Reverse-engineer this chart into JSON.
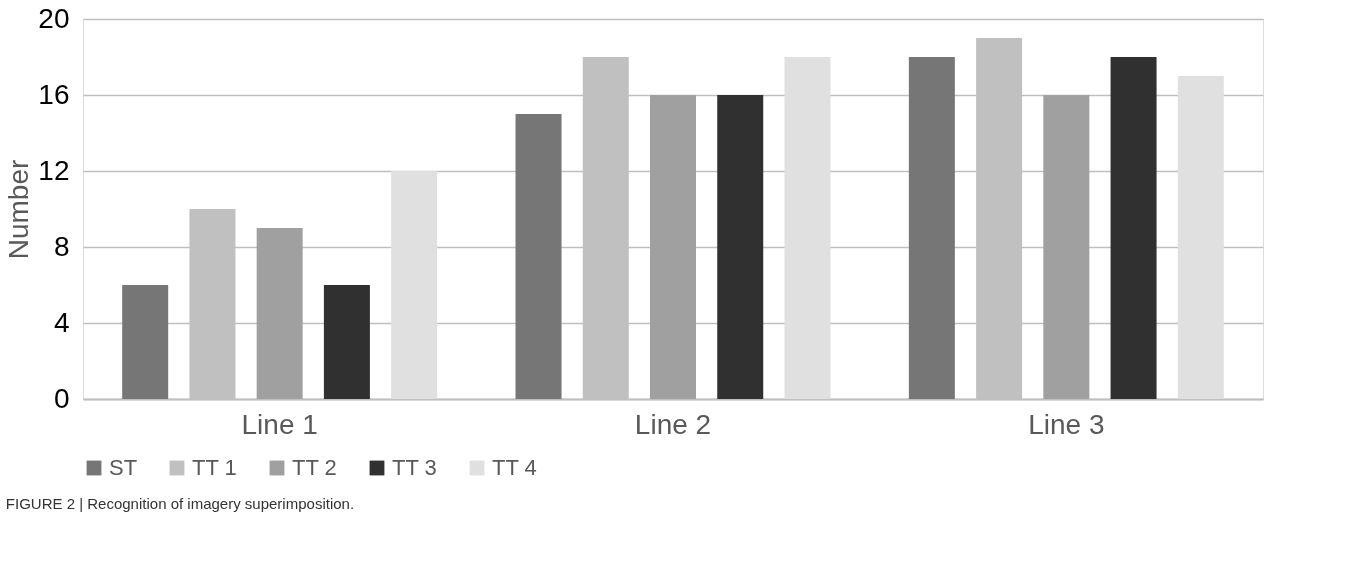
{
  "chart_data": {
    "type": "bar",
    "ylabel": "Number",
    "categories": [
      "Line 1",
      "Line 2",
      "Line 3"
    ],
    "series": [
      {
        "name": "ST",
        "color": "#767676",
        "values": [
          6,
          15,
          18
        ]
      },
      {
        "name": "TT 1",
        "color": "#c0c0c0",
        "values": [
          10,
          18,
          19
        ]
      },
      {
        "name": "TT 2",
        "color": "#a0a0a0",
        "values": [
          9,
          16,
          16
        ]
      },
      {
        "name": "TT 3",
        "color": "#303030",
        "values": [
          6,
          16,
          18
        ]
      },
      {
        "name": "TT 4",
        "color": "#e0e0e0",
        "values": [
          12,
          18,
          17
        ]
      }
    ],
    "ylim": [
      0,
      20
    ],
    "yticks": [
      0,
      4,
      8,
      12,
      16,
      20
    ],
    "grid": "y",
    "legend": "bottom",
    "annotations": [
      "FIGURE 2 | Recognition of imagery superimposition."
    ]
  }
}
